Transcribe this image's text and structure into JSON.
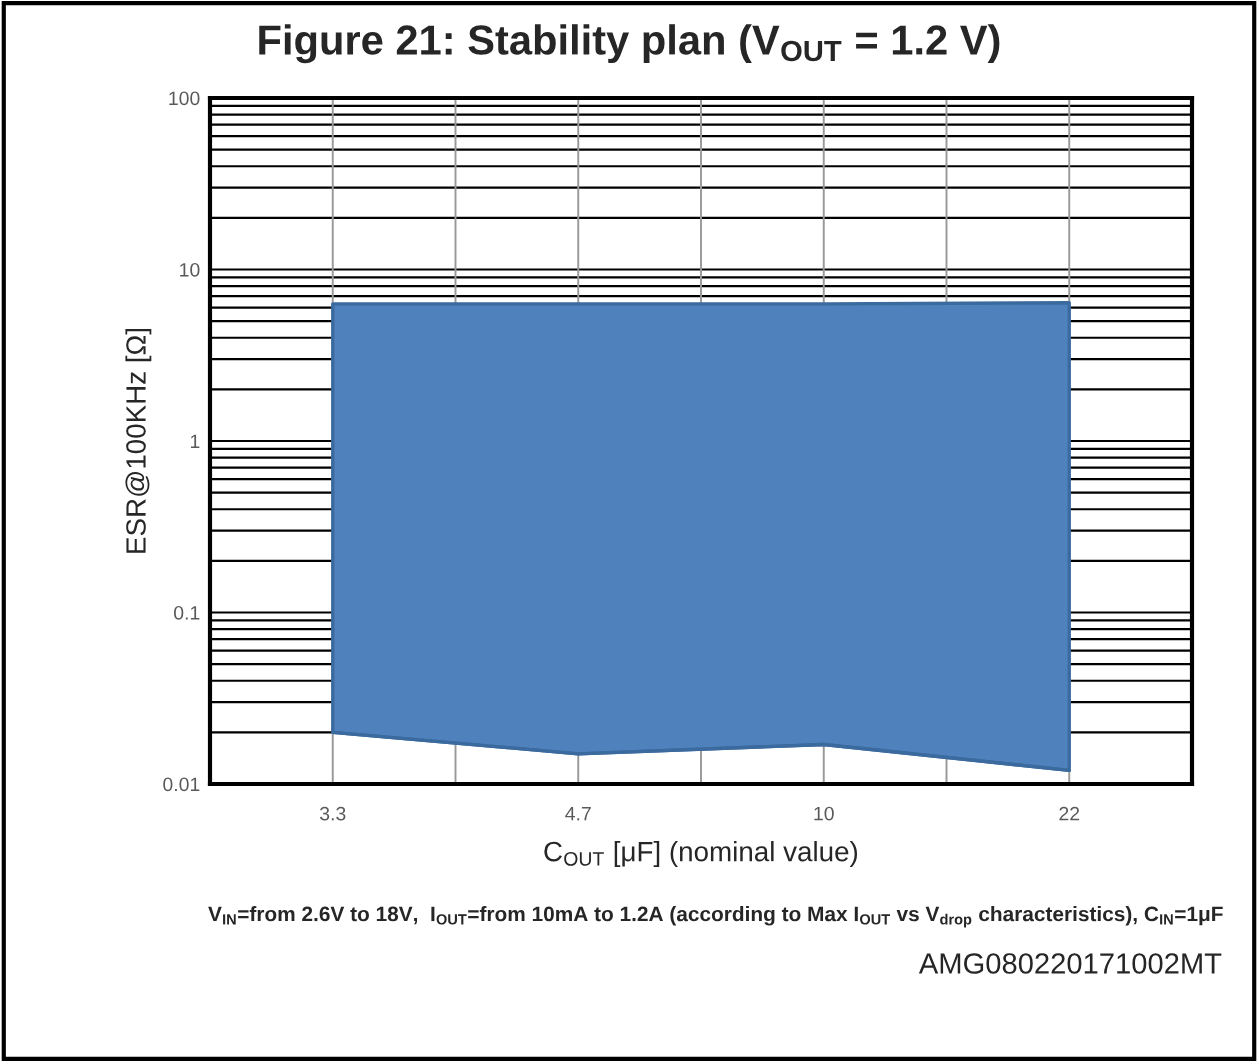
{
  "chart_data": {
    "type": "area",
    "title": "Figure 21: Stability plan (V$_{OUT}$ = 1.2 V)",
    "xlabel": "C$_{OUT}$ [μF] (nominal value)",
    "ylabel": "ESR@100KHz [Ω]",
    "categories": [
      "3.3",
      "4.7",
      "10",
      "22"
    ],
    "stacked": true,
    "series": [
      {
        "type": "line",
        "color": "#3b6a9e",
        "values": [
          0.02,
          0.015,
          0.017,
          0.012
        ]
      },
      {
        "color": "#4f81bd",
        "values": [
          6.28,
          6.29,
          6.28,
          6.39
        ]
      }
    ],
    "log": "y",
    "ylim": [
      0.01,
      100
    ],
    "yticks": [
      0.01,
      0.1,
      1,
      10,
      100
    ],
    "grid": true,
    "legend": false,
    "annotations": [
      "V$_{IN}$=from 2.6V to 18V,  I$_{OUT}$=from 10mA to 1.2A (according to Max I$_{OUT}$ vs V$_{drop}$ characteristics), C$_{IN}$=1μF",
      "AMG080220171002MT"
    ]
  }
}
